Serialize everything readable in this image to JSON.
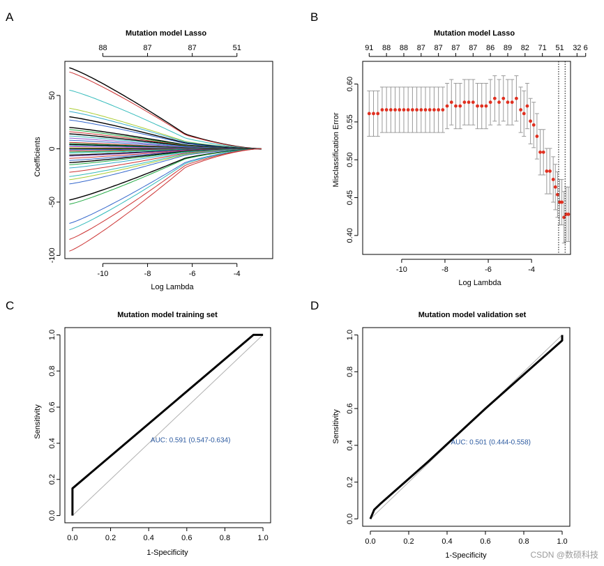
{
  "watermark": "CSDN @数硕科技",
  "chart_data": [
    {
      "panel": "A",
      "type": "line",
      "title": "Mutation model Lasso",
      "xlabel": "Log Lambda",
      "ylabel": "Coefficients",
      "xlim": [
        -11.7,
        -2.4
      ],
      "ylim": [
        -103,
        82
      ],
      "xticks": [
        -10,
        -8,
        -6,
        -4
      ],
      "yticks": [
        -100,
        -50,
        0,
        50
      ],
      "top_axis_ticks": [
        {
          "x": -10,
          "label": "88"
        },
        {
          "x": -8,
          "label": "87"
        },
        {
          "x": -6,
          "label": "87"
        },
        {
          "x": -4,
          "label": "51"
        }
      ],
      "path_x_start": -11.5,
      "path_x_end": -2.9,
      "path_shrink_lambda": -6.3,
      "series_start_values": [
        {
          "color": "#000000",
          "value": 76
        },
        {
          "color": "#cc3333",
          "value": 72
        },
        {
          "color": "#33bbbb",
          "value": 55
        },
        {
          "color": "#aacc33",
          "value": 38
        },
        {
          "color": "#33aacc",
          "value": 35
        },
        {
          "color": "#000000",
          "value": 30
        },
        {
          "color": "#3366cc",
          "value": 27
        },
        {
          "color": "#000000",
          "value": 20
        },
        {
          "color": "#22aa44",
          "value": 18
        },
        {
          "color": "#cc3333",
          "value": 16
        },
        {
          "color": "#000000",
          "value": 14
        },
        {
          "color": "#33bbbb",
          "value": 12
        },
        {
          "color": "#8855cc",
          "value": 10
        },
        {
          "color": "#3366cc",
          "value": 8
        },
        {
          "color": "#cc3333",
          "value": 6
        },
        {
          "color": "#22aa44",
          "value": 5
        },
        {
          "color": "#000000",
          "value": 4
        },
        {
          "color": "#33aacc",
          "value": 3
        },
        {
          "color": "#cc33cc",
          "value": 2
        },
        {
          "color": "#aacc33",
          "value": 1
        },
        {
          "color": "#000000",
          "value": 0
        },
        {
          "color": "#3366cc",
          "value": -1
        },
        {
          "color": "#cc3333",
          "value": -2
        },
        {
          "color": "#22aa44",
          "value": -3
        },
        {
          "color": "#33bbbb",
          "value": -4
        },
        {
          "color": "#000000",
          "value": -6
        },
        {
          "color": "#8855cc",
          "value": -7
        },
        {
          "color": "#cc3333",
          "value": -9
        },
        {
          "color": "#3366cc",
          "value": -11
        },
        {
          "color": "#000000",
          "value": -13
        },
        {
          "color": "#22aa44",
          "value": -15
        },
        {
          "color": "#33aacc",
          "value": -18
        },
        {
          "color": "#cc3333",
          "value": -22
        },
        {
          "color": "#33bbbb",
          "value": -26
        },
        {
          "color": "#aacc33",
          "value": -29
        },
        {
          "color": "#3366cc",
          "value": -33
        },
        {
          "color": "#000000",
          "value": -48
        },
        {
          "color": "#22aa44",
          "value": -52
        },
        {
          "color": "#3366cc",
          "value": -70
        },
        {
          "color": "#33bbbb",
          "value": -76
        },
        {
          "color": "#cc3333",
          "value": -85
        },
        {
          "color": "#cc3333",
          "value": -96
        }
      ]
    },
    {
      "panel": "B",
      "type": "scatter",
      "title": "Mutation model Lasso",
      "xlabel": "Log Lambda",
      "ylabel": "Misclassification Error",
      "xlim": [
        -11.8,
        -2.2
      ],
      "ylim": [
        0.375,
        0.63
      ],
      "xticks": [
        -10,
        -8,
        -6,
        -4
      ],
      "yticks": [
        0.4,
        0.45,
        0.5,
        0.55,
        0.6
      ],
      "top_axis_ticks": [
        {
          "x": -11.5,
          "label": "91"
        },
        {
          "x": -10.7,
          "label": "88"
        },
        {
          "x": -9.9,
          "label": "88"
        },
        {
          "x": -9.1,
          "label": "87"
        },
        {
          "x": -8.3,
          "label": "87"
        },
        {
          "x": -7.5,
          "label": "87"
        },
        {
          "x": -6.7,
          "label": "87"
        },
        {
          "x": -5.9,
          "label": "86"
        },
        {
          "x": -5.1,
          "label": "89"
        },
        {
          "x": -4.3,
          "label": "82"
        },
        {
          "x": -3.5,
          "label": "71"
        },
        {
          "x": -2.7,
          "label": "51"
        },
        {
          "x": -1.9,
          "label": "32"
        },
        {
          "x": -1.5,
          "label": "6"
        }
      ],
      "vlines": [
        -2.75,
        -2.45
      ],
      "points": [
        {
          "x": -11.5,
          "y": 0.561,
          "lo": 0.531,
          "hi": 0.591
        },
        {
          "x": -11.3,
          "y": 0.561,
          "lo": 0.531,
          "hi": 0.591
        },
        {
          "x": -11.1,
          "y": 0.561,
          "lo": 0.531,
          "hi": 0.591
        },
        {
          "x": -10.9,
          "y": 0.566,
          "lo": 0.536,
          "hi": 0.596
        },
        {
          "x": -10.7,
          "y": 0.566,
          "lo": 0.536,
          "hi": 0.596
        },
        {
          "x": -10.5,
          "y": 0.566,
          "lo": 0.536,
          "hi": 0.596
        },
        {
          "x": -10.3,
          "y": 0.566,
          "lo": 0.536,
          "hi": 0.596
        },
        {
          "x": -10.1,
          "y": 0.566,
          "lo": 0.536,
          "hi": 0.596
        },
        {
          "x": -9.9,
          "y": 0.566,
          "lo": 0.536,
          "hi": 0.596
        },
        {
          "x": -9.7,
          "y": 0.566,
          "lo": 0.536,
          "hi": 0.596
        },
        {
          "x": -9.5,
          "y": 0.566,
          "lo": 0.536,
          "hi": 0.596
        },
        {
          "x": -9.3,
          "y": 0.566,
          "lo": 0.536,
          "hi": 0.596
        },
        {
          "x": -9.1,
          "y": 0.566,
          "lo": 0.536,
          "hi": 0.596
        },
        {
          "x": -8.9,
          "y": 0.566,
          "lo": 0.536,
          "hi": 0.596
        },
        {
          "x": -8.7,
          "y": 0.566,
          "lo": 0.536,
          "hi": 0.596
        },
        {
          "x": -8.5,
          "y": 0.566,
          "lo": 0.536,
          "hi": 0.596
        },
        {
          "x": -8.3,
          "y": 0.566,
          "lo": 0.536,
          "hi": 0.596
        },
        {
          "x": -8.1,
          "y": 0.566,
          "lo": 0.536,
          "hi": 0.596
        },
        {
          "x": -7.9,
          "y": 0.571,
          "lo": 0.541,
          "hi": 0.601
        },
        {
          "x": -7.7,
          "y": 0.576,
          "lo": 0.546,
          "hi": 0.606
        },
        {
          "x": -7.5,
          "y": 0.571,
          "lo": 0.541,
          "hi": 0.601
        },
        {
          "x": -7.3,
          "y": 0.571,
          "lo": 0.541,
          "hi": 0.601
        },
        {
          "x": -7.1,
          "y": 0.576,
          "lo": 0.546,
          "hi": 0.606
        },
        {
          "x": -6.9,
          "y": 0.576,
          "lo": 0.546,
          "hi": 0.606
        },
        {
          "x": -6.7,
          "y": 0.576,
          "lo": 0.546,
          "hi": 0.606
        },
        {
          "x": -6.5,
          "y": 0.571,
          "lo": 0.541,
          "hi": 0.601
        },
        {
          "x": -6.3,
          "y": 0.571,
          "lo": 0.541,
          "hi": 0.601
        },
        {
          "x": -6.1,
          "y": 0.571,
          "lo": 0.541,
          "hi": 0.601
        },
        {
          "x": -5.9,
          "y": 0.576,
          "lo": 0.546,
          "hi": 0.606
        },
        {
          "x": -5.7,
          "y": 0.581,
          "lo": 0.551,
          "hi": 0.611
        },
        {
          "x": -5.5,
          "y": 0.576,
          "lo": 0.546,
          "hi": 0.606
        },
        {
          "x": -5.3,
          "y": 0.581,
          "lo": 0.551,
          "hi": 0.611
        },
        {
          "x": -5.1,
          "y": 0.576,
          "lo": 0.546,
          "hi": 0.606
        },
        {
          "x": -4.9,
          "y": 0.576,
          "lo": 0.546,
          "hi": 0.606
        },
        {
          "x": -4.7,
          "y": 0.581,
          "lo": 0.551,
          "hi": 0.611
        },
        {
          "x": -4.5,
          "y": 0.566,
          "lo": 0.536,
          "hi": 0.596
        },
        {
          "x": -4.35,
          "y": 0.561,
          "lo": 0.531,
          "hi": 0.591
        },
        {
          "x": -4.2,
          "y": 0.571,
          "lo": 0.541,
          "hi": 0.601
        },
        {
          "x": -4.05,
          "y": 0.551,
          "lo": 0.521,
          "hi": 0.581
        },
        {
          "x": -3.9,
          "y": 0.546,
          "lo": 0.516,
          "hi": 0.576
        },
        {
          "x": -3.75,
          "y": 0.531,
          "lo": 0.501,
          "hi": 0.561
        },
        {
          "x": -3.6,
          "y": 0.51,
          "lo": 0.48,
          "hi": 0.54
        },
        {
          "x": -3.45,
          "y": 0.51,
          "lo": 0.48,
          "hi": 0.54
        },
        {
          "x": -3.3,
          "y": 0.485,
          "lo": 0.455,
          "hi": 0.515
        },
        {
          "x": -3.15,
          "y": 0.485,
          "lo": 0.455,
          "hi": 0.515
        },
        {
          "x": -3.0,
          "y": 0.474,
          "lo": 0.444,
          "hi": 0.504
        },
        {
          "x": -2.9,
          "y": 0.464,
          "lo": 0.434,
          "hi": 0.494
        },
        {
          "x": -2.8,
          "y": 0.454,
          "lo": 0.424,
          "hi": 0.484
        },
        {
          "x": -2.7,
          "y": 0.444,
          "lo": 0.414,
          "hi": 0.474
        },
        {
          "x": -2.6,
          "y": 0.444,
          "lo": 0.414,
          "hi": 0.474
        },
        {
          "x": -2.5,
          "y": 0.424,
          "lo": 0.39,
          "hi": 0.458
        },
        {
          "x": -2.4,
          "y": 0.428,
          "lo": 0.392,
          "hi": 0.464
        },
        {
          "x": -2.3,
          "y": 0.428,
          "lo": 0.392,
          "hi": 0.464
        }
      ]
    },
    {
      "panel": "C",
      "type": "line",
      "title": "Mutation model training set",
      "xlabel": "1-Specificity",
      "ylabel": "Sensitivity",
      "xlim": [
        -0.04,
        1.04
      ],
      "ylim": [
        -0.04,
        1.04
      ],
      "xticks": [
        0.0,
        0.2,
        0.4,
        0.6,
        0.8,
        1.0
      ],
      "yticks": [
        0.0,
        0.2,
        0.4,
        0.6,
        0.8,
        1.0
      ],
      "annotation": "AUC:  0.591 (0.547-0.634)",
      "annotation_pos": [
        0.41,
        0.405
      ],
      "roc": [
        [
          0,
          0
        ],
        [
          0,
          0.15
        ],
        [
          0.95,
          1.0
        ],
        [
          1.0,
          1.0
        ]
      ]
    },
    {
      "panel": "D",
      "type": "line",
      "title": "Mutation model validation set",
      "xlabel": "1-Specificity",
      "ylabel": "Sensitivity",
      "xlim": [
        -0.04,
        1.04
      ],
      "ylim": [
        -0.04,
        1.04
      ],
      "xticks": [
        0.0,
        0.2,
        0.4,
        0.6,
        0.8,
        1.0
      ],
      "yticks": [
        0.0,
        0.2,
        0.4,
        0.6,
        0.8,
        1.0
      ],
      "annotation": "AUC:  0.501 (0.444-0.558)",
      "annotation_pos": [
        0.42,
        0.405
      ],
      "roc": [
        [
          0,
          0
        ],
        [
          0.02,
          0.05
        ],
        [
          0.03,
          0.06
        ],
        [
          0.05,
          0.08
        ],
        [
          0.3,
          0.31
        ],
        [
          0.6,
          0.6
        ],
        [
          1.0,
          0.97
        ],
        [
          1.0,
          1.0
        ]
      ]
    }
  ]
}
